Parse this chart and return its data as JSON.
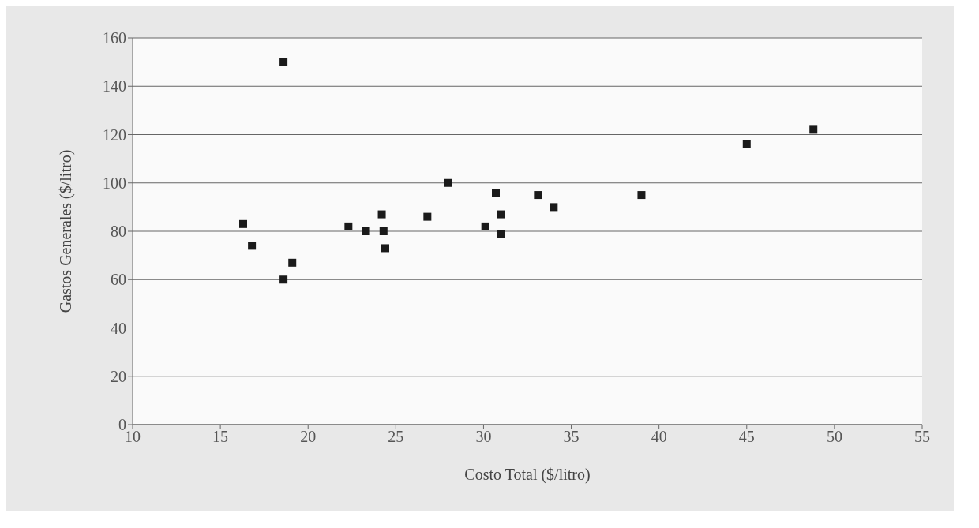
{
  "chart_data": {
    "type": "scatter",
    "xlabel": "Costo Total ($/litro)",
    "ylabel": "Gastos Generales ($/litro)",
    "x": [
      18.6,
      16.3,
      16.8,
      18.6,
      19.1,
      22.3,
      23.3,
      24.2,
      24.3,
      24.4,
      26.8,
      28.0,
      30.1,
      30.7,
      31.0,
      31.0,
      33.1,
      34.0,
      39.0,
      45.0,
      48.8
    ],
    "values": [
      150,
      83,
      74,
      60,
      67,
      82,
      80,
      87,
      80,
      73,
      86,
      100,
      82,
      96,
      87,
      79,
      95,
      90,
      95,
      116,
      122
    ],
    "color": "#1a1a1a",
    "marker": "square",
    "xlim": [
      10,
      55
    ],
    "xticks": [
      10,
      15,
      20,
      25,
      30,
      35,
      40,
      45,
      50,
      55
    ],
    "ylim": [
      0,
      160
    ],
    "yticks": [
      0,
      20,
      40,
      60,
      80,
      100,
      120,
      140,
      160
    ],
    "grid": "y"
  }
}
